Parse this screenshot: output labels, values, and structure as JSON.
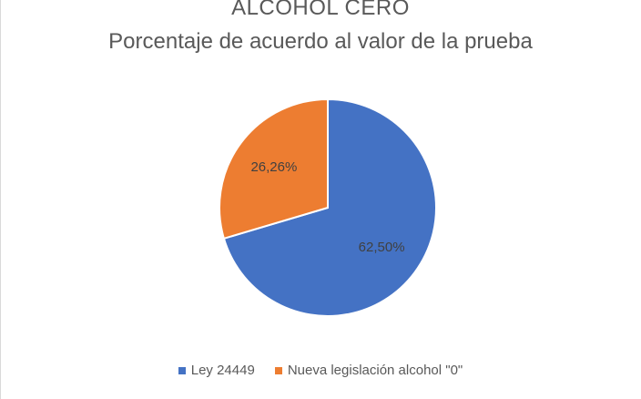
{
  "chart_data": {
    "type": "pie",
    "title": "ALCOHOL CERO",
    "subtitle": "Porcentaje de acuerdo al valor de la prueba",
    "labels": [
      "Ley 24449",
      "Nueva legislación alcohol \"0\""
    ],
    "values": [
      62.5,
      26.26
    ],
    "data_labels": [
      "62,50%",
      "26,26%"
    ],
    "colors": [
      "#4472C4",
      "#ED7D31"
    ],
    "legend_position": "bottom"
  }
}
